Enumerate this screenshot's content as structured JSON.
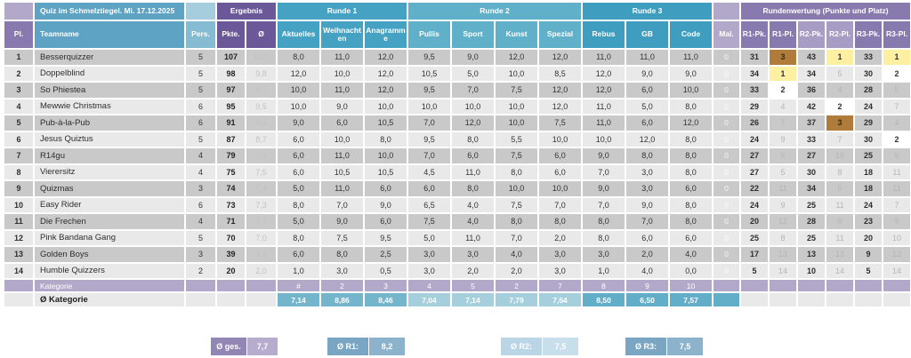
{
  "title": "Quiz im Schmelztiegel. Mi. 17.12.2025",
  "groups": {
    "ergebnis": "Ergebnis",
    "runde1": "Runde 1",
    "runde2": "Runde 2",
    "runde3": "Runde 3",
    "rundenwertung": "Rundenwertung (Punkte und Platz)"
  },
  "columns": {
    "pl": "Pl.",
    "teamname": "Teamname",
    "pers": "Pers.",
    "pkte": "Pkte.",
    "avg": "Ø",
    "runde1": [
      "Aktuelles",
      "Weihnachten",
      "Anagramme"
    ],
    "runde2": [
      "Pullis",
      "Sport",
      "Kunst",
      "Spezial"
    ],
    "runde3": [
      "Rebus",
      "GB",
      "Code"
    ],
    "mal": "Mal.",
    "wertung": [
      "R1-Pk.",
      "R1-Pl.",
      "R2-Pk.",
      "R2-Pl.",
      "R3-Pk.",
      "R3-Pl."
    ]
  },
  "teams": [
    {
      "pl": "1",
      "name": "Besserquizzer",
      "pers": "5",
      "pkte": "107",
      "avg": "10,7",
      "mal": "0",
      "scores": [
        "8,0",
        "11,0",
        "12,0",
        "9,5",
        "9,0",
        "12,0",
        "12,0",
        "11,0",
        "11,0",
        "11,0"
      ],
      "wertung": [
        "31",
        "3",
        "43",
        "1",
        "33",
        "1"
      ]
    },
    {
      "pl": "2",
      "name": "Doppelblind",
      "pers": "5",
      "pkte": "98",
      "avg": "9,8",
      "mal": "0",
      "scores": [
        "12,0",
        "10,0",
        "12,0",
        "10,5",
        "5,0",
        "10,0",
        "8,5",
        "12,0",
        "9,0",
        "9,0"
      ],
      "wertung": [
        "34",
        "1",
        "34",
        "5",
        "30",
        "2"
      ]
    },
    {
      "pl": "3",
      "name": "So Phiestea",
      "pers": "5",
      "pkte": "97",
      "avg": "9,7",
      "mal": "0",
      "scores": [
        "10,0",
        "11,0",
        "12,0",
        "9,5",
        "7,0",
        "7,5",
        "12,0",
        "12,0",
        "6,0",
        "10,0"
      ],
      "wertung": [
        "33",
        "2",
        "36",
        "4",
        "28",
        "5"
      ]
    },
    {
      "pl": "4",
      "name": "Mewwie Christmas",
      "pers": "6",
      "pkte": "95",
      "avg": "9,5",
      "mal": "0",
      "scores": [
        "10,0",
        "9,0",
        "10,0",
        "10,0",
        "10,0",
        "10,0",
        "12,0",
        "11,0",
        "5,0",
        "8,0"
      ],
      "wertung": [
        "29",
        "4",
        "42",
        "2",
        "24",
        "7"
      ]
    },
    {
      "pl": "5",
      "name": "Pub-à-la-Pub",
      "pers": "6",
      "pkte": "91",
      "avg": "9,1",
      "mal": "0",
      "scores": [
        "9,0",
        "6,0",
        "10,5",
        "7,0",
        "12,0",
        "10,0",
        "7,5",
        "11,0",
        "6,0",
        "12,0"
      ],
      "wertung": [
        "26",
        "7",
        "37",
        "3",
        "29",
        "4"
      ]
    },
    {
      "pl": "6",
      "name": "Jesus Quiztus",
      "pers": "5",
      "pkte": "87",
      "avg": "8,7",
      "mal": "0",
      "scores": [
        "6,0",
        "10,0",
        "8,0",
        "9,5",
        "8,0",
        "5,5",
        "10,0",
        "10,0",
        "12,0",
        "8,0"
      ],
      "wertung": [
        "24",
        "9",
        "33",
        "7",
        "30",
        "2"
      ]
    },
    {
      "pl": "7",
      "name": "R14gu",
      "pers": "4",
      "pkte": "79",
      "avg": "7,9",
      "mal": "0",
      "scores": [
        "6,0",
        "11,0",
        "10,0",
        "7,0",
        "6,0",
        "7,5",
        "6,0",
        "9,0",
        "8,0",
        "8,0"
      ],
      "wertung": [
        "27",
        "5",
        "27",
        "10",
        "25",
        "6"
      ]
    },
    {
      "pl": "8",
      "name": "Vierersitz",
      "pers": "4",
      "pkte": "75",
      "avg": "7,5",
      "mal": "0",
      "scores": [
        "6,0",
        "10,5",
        "10,5",
        "4,5",
        "11,0",
        "8,0",
        "6,0",
        "7,0",
        "3,0",
        "8,0"
      ],
      "wertung": [
        "27",
        "5",
        "30",
        "8",
        "18",
        "11"
      ]
    },
    {
      "pl": "9",
      "name": "Quizmas",
      "pers": "3",
      "pkte": "74",
      "avg": "7,4",
      "mal": "0",
      "scores": [
        "5,0",
        "11,0",
        "6,0",
        "6,0",
        "8,0",
        "10,0",
        "10,0",
        "9,0",
        "3,0",
        "6,0"
      ],
      "wertung": [
        "22",
        "11",
        "34",
        "5",
        "18",
        "11"
      ]
    },
    {
      "pl": "10",
      "name": "Easy Rider",
      "pers": "6",
      "pkte": "73",
      "avg": "7,3",
      "mal": "0",
      "scores": [
        "8,0",
        "7,0",
        "9,0",
        "6,5",
        "4,0",
        "7,5",
        "7,0",
        "7,0",
        "9,0",
        "8,0"
      ],
      "wertung": [
        "24",
        "9",
        "25",
        "11",
        "24",
        "7"
      ]
    },
    {
      "pl": "11",
      "name": "Die Frechen",
      "pers": "4",
      "pkte": "71",
      "avg": "7,1",
      "mal": "0",
      "scores": [
        "5,0",
        "9,0",
        "6,0",
        "7,5",
        "4,0",
        "8,0",
        "8,0",
        "8,0",
        "7,0",
        "8,0"
      ],
      "wertung": [
        "20",
        "12",
        "28",
        "9",
        "23",
        "9"
      ]
    },
    {
      "pl": "12",
      "name": "Pink Bandana Gang",
      "pers": "5",
      "pkte": "70",
      "avg": "7,0",
      "mal": "0",
      "scores": [
        "8,0",
        "7,5",
        "9,5",
        "5,0",
        "11,0",
        "7,0",
        "2,0",
        "8,0",
        "6,0",
        "6,0"
      ],
      "wertung": [
        "25",
        "8",
        "25",
        "11",
        "20",
        "10"
      ]
    },
    {
      "pl": "13",
      "name": "Golden Boys",
      "pers": "3",
      "pkte": "39",
      "avg": "3,9",
      "mal": "0",
      "scores": [
        "6,0",
        "8,0",
        "2,5",
        "3,0",
        "3,0",
        "4,0",
        "3,0",
        "3,0",
        "2,0",
        "4,0"
      ],
      "wertung": [
        "17",
        "13",
        "13",
        "13",
        "9",
        "13"
      ]
    },
    {
      "pl": "14",
      "name": "Humble Quizzers",
      "pers": "2",
      "pkte": "20",
      "avg": "2,0",
      "mal": "0",
      "scores": [
        "1,0",
        "3,0",
        "0,5",
        "3,0",
        "2,0",
        "2,0",
        "3,0",
        "1,0",
        "4,0",
        "0,0"
      ],
      "wertung": [
        "5",
        "14",
        "10",
        "14",
        "5",
        "14"
      ]
    }
  ],
  "kategorie": {
    "label": "Kategorie",
    "numbers": [
      "#",
      "2",
      "3",
      "4",
      "5",
      "2",
      "7",
      "8",
      "9",
      "10"
    ]
  },
  "avg_kategorie": {
    "label": "Ø Kategorie",
    "values": [
      "7,14",
      "8,86",
      "8,46",
      "7,04",
      "7,14",
      "7,79",
      "7,64",
      "8,50",
      "6,50",
      "7,57"
    ]
  },
  "summary": {
    "total": {
      "label": "Ø ges.",
      "value": "7,7"
    },
    "r1": {
      "label": "Ø R1:",
      "value": "8,2"
    },
    "r2": {
      "label": "Ø R2:",
      "value": "7,5"
    },
    "r3": {
      "label": "Ø R3:",
      "value": "7,5"
    }
  },
  "colors": {
    "purple_dark": "#6a5899",
    "purple_medium": "#887aae",
    "purple_light": "#b2a8ca",
    "blue_header": "#5ea3c3",
    "teal_runde1": "#45a2c2",
    "teal_runde2": "#60b0ca",
    "teal_runde3": "#3f9dbf",
    "place_gold": "#fdf1a1",
    "place_white": "#ffffff",
    "place_bronze": "#b07c3c",
    "row_dark": "#c9c9c9",
    "row_light": "#e9e9e9"
  }
}
